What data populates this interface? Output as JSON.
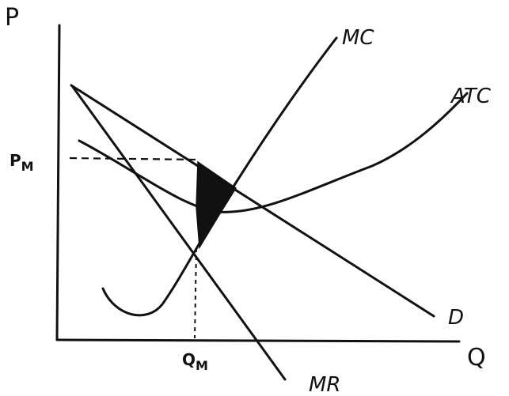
{
  "axes": {
    "y_label": "P",
    "x_label": "Q"
  },
  "curves": {
    "mc_label": "MC",
    "atc_label": "ATC",
    "demand_label": "D",
    "mr_label": "MR"
  },
  "markers": {
    "price_label": "P",
    "price_sub": "M",
    "quantity_label": "Q",
    "quantity_sub": "M"
  },
  "colors": {
    "ink": "#111111",
    "shade": "#111111"
  }
}
